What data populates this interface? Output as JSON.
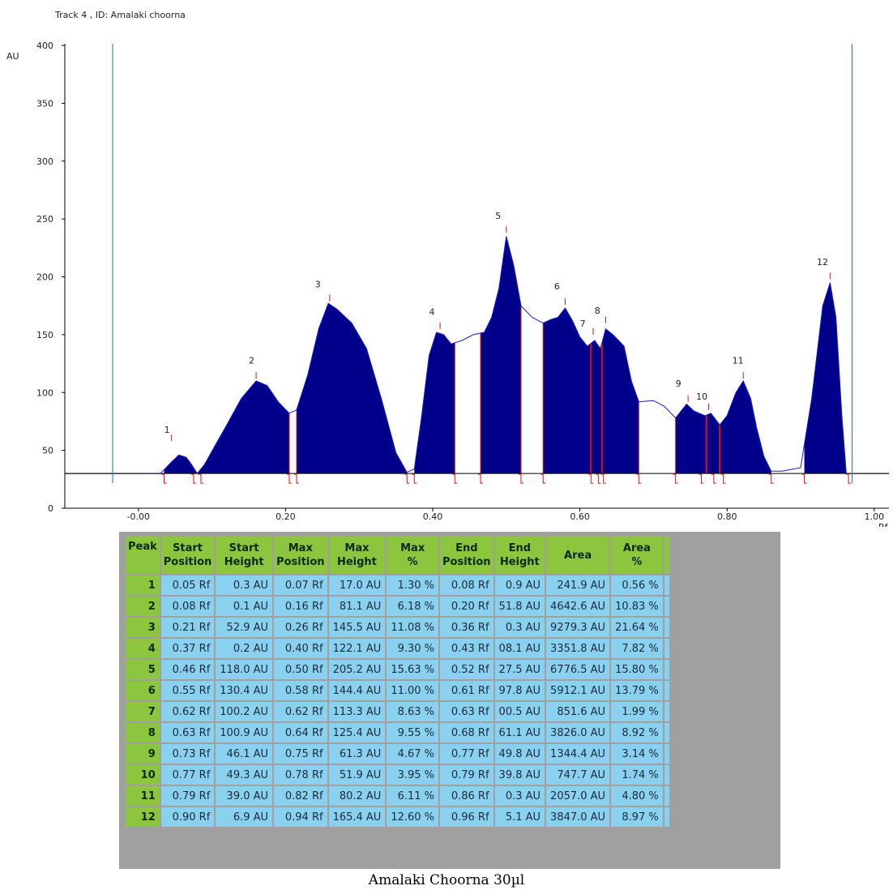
{
  "track_title": "Track  4 , ID: Amalaki choorna",
  "caption": "Amalaki Choorna 30µl",
  "chart_data": {
    "type": "area",
    "title": "Track  4 , ID: Amalaki choorna",
    "ylabel": "AU",
    "xlabel": "Rf",
    "xlim": [
      -0.1,
      1.02
    ],
    "ylim": [
      0,
      400
    ],
    "xticks": [
      "-0.00",
      "0.20",
      "0.40",
      "0.60",
      "0.80",
      "1.00"
    ],
    "xtick_values": [
      0.0,
      0.2,
      0.4,
      0.6,
      0.8,
      1.0
    ],
    "yticks": [
      "0",
      "50",
      "100",
      "150",
      "200",
      "250",
      "300",
      "350",
      "400"
    ],
    "ytick_values": [
      0,
      50,
      100,
      150,
      200,
      250,
      300,
      350,
      400
    ],
    "baseline": 30,
    "front_lines": [
      -0.035,
      0.97
    ],
    "colors": {
      "fill": "#00008b",
      "curve": "#1a1acc",
      "marker": "#dd1111",
      "front": "#1f7a86",
      "axis": "#000000"
    },
    "curve": [
      [
        -0.1,
        30
      ],
      [
        -0.04,
        30
      ],
      [
        0.03,
        30
      ],
      [
        0.045,
        40
      ],
      [
        0.055,
        46
      ],
      [
        0.065,
        44
      ],
      [
        0.072,
        38
      ],
      [
        0.08,
        30
      ],
      [
        0.09,
        38
      ],
      [
        0.105,
        55
      ],
      [
        0.12,
        72
      ],
      [
        0.14,
        95
      ],
      [
        0.16,
        110
      ],
      [
        0.175,
        106
      ],
      [
        0.19,
        92
      ],
      [
        0.205,
        82
      ],
      [
        0.215,
        85
      ],
      [
        0.23,
        115
      ],
      [
        0.245,
        155
      ],
      [
        0.258,
        177
      ],
      [
        0.27,
        172
      ],
      [
        0.29,
        160
      ],
      [
        0.31,
        138
      ],
      [
        0.33,
        95
      ],
      [
        0.35,
        48
      ],
      [
        0.365,
        31
      ],
      [
        0.375,
        34
      ],
      [
        0.385,
        80
      ],
      [
        0.395,
        132
      ],
      [
        0.405,
        152
      ],
      [
        0.415,
        150
      ],
      [
        0.425,
        142
      ],
      [
        0.44,
        145
      ],
      [
        0.455,
        150
      ],
      [
        0.47,
        152
      ],
      [
        0.48,
        165
      ],
      [
        0.49,
        190
      ],
      [
        0.5,
        235
      ],
      [
        0.51,
        210
      ],
      [
        0.52,
        175
      ],
      [
        0.535,
        165
      ],
      [
        0.55,
        160
      ],
      [
        0.56,
        163
      ],
      [
        0.57,
        165
      ],
      [
        0.58,
        173
      ],
      [
        0.59,
        162
      ],
      [
        0.6,
        148
      ],
      [
        0.61,
        140
      ],
      [
        0.62,
        145
      ],
      [
        0.628,
        138
      ],
      [
        0.635,
        155
      ],
      [
        0.645,
        150
      ],
      [
        0.66,
        140
      ],
      [
        0.67,
        110
      ],
      [
        0.68,
        92
      ],
      [
        0.7,
        93
      ],
      [
        0.715,
        88
      ],
      [
        0.73,
        78
      ],
      [
        0.745,
        90
      ],
      [
        0.755,
        84
      ],
      [
        0.77,
        80
      ],
      [
        0.778,
        82
      ],
      [
        0.79,
        72
      ],
      [
        0.8,
        80
      ],
      [
        0.812,
        100
      ],
      [
        0.822,
        110
      ],
      [
        0.832,
        95
      ],
      [
        0.84,
        70
      ],
      [
        0.85,
        45
      ],
      [
        0.86,
        32
      ],
      [
        0.875,
        32
      ],
      [
        0.9,
        35
      ],
      [
        0.915,
        95
      ],
      [
        0.93,
        175
      ],
      [
        0.94,
        195
      ],
      [
        0.948,
        165
      ],
      [
        0.956,
        80
      ],
      [
        0.962,
        30
      ],
      [
        0.97,
        30
      ],
      [
        1.02,
        30
      ]
    ],
    "peak_segments": [
      [
        0.035,
        0.08
      ],
      [
        0.08,
        0.205
      ],
      [
        0.215,
        0.365
      ],
      [
        0.375,
        0.43
      ],
      [
        0.465,
        0.52
      ],
      [
        0.55,
        0.615
      ],
      [
        0.615,
        0.63
      ],
      [
        0.63,
        0.68
      ],
      [
        0.73,
        0.772
      ],
      [
        0.772,
        0.79
      ],
      [
        0.79,
        0.86
      ],
      [
        0.905,
        0.965
      ]
    ],
    "region_lines": [
      0.205,
      0.215,
      0.43,
      0.465,
      0.52,
      0.55,
      0.68,
      0.73
    ],
    "red_boundary_lines": [
      0.615,
      0.63,
      0.772,
      0.79
    ],
    "base_markers": [
      0.035,
      0.075,
      0.085,
      0.205,
      0.215,
      0.365,
      0.375,
      0.43,
      0.465,
      0.52,
      0.55,
      0.615,
      0.625,
      0.632,
      0.68,
      0.73,
      0.765,
      0.782,
      0.795,
      0.86,
      0.905,
      0.965
    ],
    "peak_labels": [
      {
        "label": "1",
        "x": 0.045,
        "y": 58,
        "lx": 0.035,
        "ly": 65
      },
      {
        "label": "2",
        "x": 0.16,
        "y": 112,
        "lx": 0.15,
        "ly": 125
      },
      {
        "label": "3",
        "x": 0.26,
        "y": 179,
        "lx": 0.24,
        "ly": 191
      },
      {
        "label": "4",
        "x": 0.41,
        "y": 155,
        "lx": 0.395,
        "ly": 167
      },
      {
        "label": "5",
        "x": 0.5,
        "y": 238,
        "lx": 0.485,
        "ly": 250
      },
      {
        "label": "6",
        "x": 0.58,
        "y": 176,
        "lx": 0.565,
        "ly": 189
      },
      {
        "label": "7",
        "x": 0.618,
        "y": 150,
        "lx": 0.6,
        "ly": 157
      },
      {
        "label": "8",
        "x": 0.635,
        "y": 160,
        "lx": 0.62,
        "ly": 168
      },
      {
        "label": "9",
        "x": 0.747,
        "y": 92,
        "lx": 0.73,
        "ly": 105
      },
      {
        "label": "10",
        "x": 0.775,
        "y": 85,
        "lx": 0.758,
        "ly": 94
      },
      {
        "label": "11",
        "x": 0.822,
        "y": 112,
        "lx": 0.807,
        "ly": 125
      },
      {
        "label": "12",
        "x": 0.94,
        "y": 198,
        "lx": 0.922,
        "ly": 210
      }
    ]
  },
  "table": {
    "headers": [
      [
        "Peak",
        ""
      ],
      [
        "Start",
        "Position"
      ],
      [
        "Start",
        "Height"
      ],
      [
        "Max",
        "Position"
      ],
      [
        "Max",
        "Height"
      ],
      [
        "Max",
        "%"
      ],
      [
        "End",
        "Position"
      ],
      [
        "End",
        "Height"
      ],
      [
        "Area",
        ""
      ],
      [
        "Area",
        "%"
      ]
    ],
    "rows": [
      [
        "1",
        "0.05 Rf",
        "0.3 AU",
        "0.07 Rf",
        "17.0 AU",
        "1.30 %",
        "0.08 Rf",
        "0.9 AU",
        "241.9 AU",
        "0.56 %"
      ],
      [
        "2",
        "0.08 Rf",
        "0.1 AU",
        "0.16 Rf",
        "81.1 AU",
        "6.18 %",
        "0.20 Rf",
        "51.8 AU",
        "4642.6 AU",
        "10.83 %"
      ],
      [
        "3",
        "0.21 Rf",
        "52.9 AU",
        "0.26 Rf",
        "145.5 AU",
        "11.08 %",
        "0.36 Rf",
        "0.3 AU",
        "9279.3 AU",
        "21.64 %"
      ],
      [
        "4",
        "0.37 Rf",
        "0.2 AU",
        "0.40 Rf",
        "122.1 AU",
        "9.30 %",
        "0.43 Rf",
        "08.1 AU",
        "3351.8 AU",
        "7.82 %"
      ],
      [
        "5",
        "0.46 Rf",
        "118.0 AU",
        "0.50 Rf",
        "205.2 AU",
        "15.63 %",
        "0.52 Rf",
        "27.5 AU",
        "6776.5 AU",
        "15.80 %"
      ],
      [
        "6",
        "0.55 Rf",
        "130.4 AU",
        "0.58 Rf",
        "144.4 AU",
        "11.00 %",
        "0.61 Rf",
        "97.8 AU",
        "5912.1 AU",
        "13.79 %"
      ],
      [
        "7",
        "0.62 Rf",
        "100.2 AU",
        "0.62 Rf",
        "113.3 AU",
        "8.63 %",
        "0.63 Rf",
        "00.5 AU",
        "851.6 AU",
        "1.99 %"
      ],
      [
        "8",
        "0.63 Rf",
        "100.9 AU",
        "0.64 Rf",
        "125.4 AU",
        "9.55 %",
        "0.68 Rf",
        "61.1 AU",
        "3826.0 AU",
        "8.92 %"
      ],
      [
        "9",
        "0.73 Rf",
        "46.1 AU",
        "0.75 Rf",
        "61.3 AU",
        "4.67 %",
        "0.77 Rf",
        "49.8 AU",
        "1344.4 AU",
        "3.14 %"
      ],
      [
        "10",
        "0.77 Rf",
        "49.3 AU",
        "0.78 Rf",
        "51.9 AU",
        "3.95 %",
        "0.79 Rf",
        "39.8 AU",
        "747.7 AU",
        "1.74 %"
      ],
      [
        "11",
        "0.79 Rf",
        "39.0 AU",
        "0.82 Rf",
        "80.2 AU",
        "6.11 %",
        "0.86 Rf",
        "0.3 AU",
        "2057.0 AU",
        "4.80 %"
      ],
      [
        "12",
        "0.90 Rf",
        "6.9 AU",
        "0.94 Rf",
        "165.4 AU",
        "12.60 %",
        "0.96 Rf",
        "5.1 AU",
        "3847.0 AU",
        "8.97 %"
      ]
    ]
  }
}
